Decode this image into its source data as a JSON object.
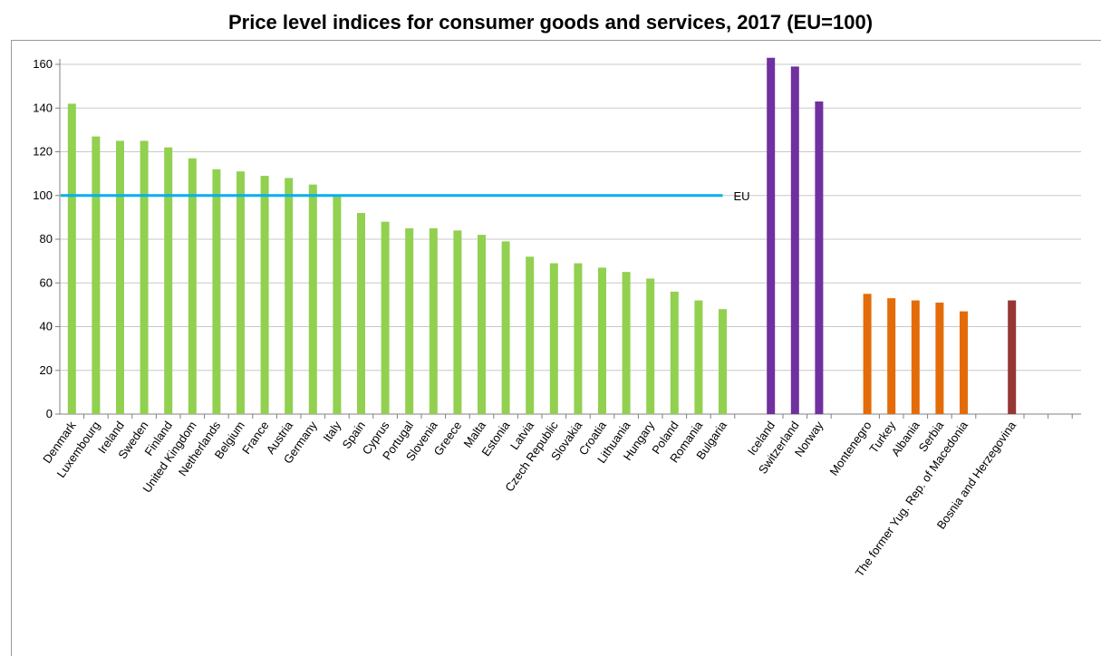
{
  "chart_data": {
    "type": "bar",
    "title": "Price level indices for consumer goods and services, 2017 (EU=100)",
    "xlabel": "",
    "ylabel": "",
    "ylim": [
      0,
      160
    ],
    "yticks": [
      0,
      20,
      40,
      60,
      80,
      100,
      120,
      140,
      160
    ],
    "grid": true,
    "legend": "none",
    "groups": [
      {
        "color": "#92d050",
        "categories": [
          "Denmark",
          "Luxembourg",
          "Ireland",
          "Sweden",
          "Finland",
          "United Kingdom",
          "Netherlands",
          "Belgium",
          "France",
          "Austria",
          "Germany",
          "Italy",
          "Spain",
          "Cyprus",
          "Portugal",
          "Slovenia",
          "Greece",
          "Malta",
          "Estonia",
          "Latvia",
          "Czech Republic",
          "Slovakia",
          "Croatia",
          "Lithuania",
          "Hungary",
          "Poland",
          "Romania",
          "Bulgaria"
        ],
        "values": [
          142,
          127,
          125,
          125,
          122,
          117,
          112,
          111,
          109,
          108,
          105,
          100,
          92,
          88,
          85,
          85,
          84,
          82,
          79,
          72,
          69,
          69,
          67,
          65,
          62,
          56,
          52,
          48
        ]
      },
      {
        "color": "#7030a0",
        "categories": [
          "Iceland",
          "Switzerland",
          "Norway"
        ],
        "values": [
          163,
          159,
          143
        ]
      },
      {
        "color": "#e36c09",
        "categories": [
          "Montenegro",
          "Turkey",
          "Albania",
          "Serbia",
          "The former Yug. Rep. of Macedonia"
        ],
        "values": [
          55,
          53,
          52,
          51,
          47
        ]
      },
      {
        "color": "#953735",
        "categories": [
          "Bosnia and Herzegovina"
        ],
        "values": [
          52
        ]
      }
    ],
    "reference_line": {
      "label": "EU",
      "value": 100,
      "color": "#00b0f0"
    }
  }
}
